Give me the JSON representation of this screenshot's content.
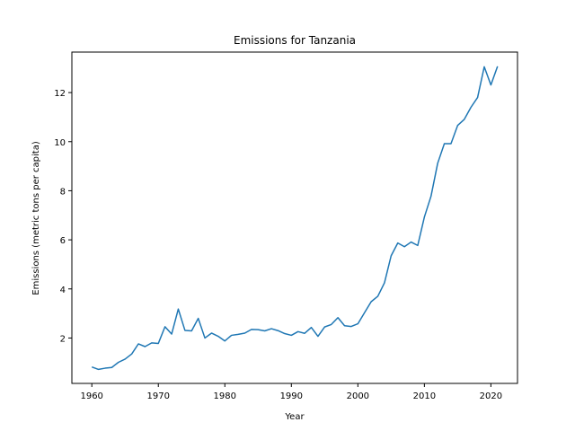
{
  "chart_data": {
    "type": "line",
    "title": "Emissions for Tanzania",
    "xlabel": "Year",
    "ylabel": "Emissions (metric tons per capita)",
    "xlim": [
      1957,
      2024
    ],
    "ylim": [
      0.15,
      13.65
    ],
    "xticks": [
      1960,
      1970,
      1980,
      1990,
      2000,
      2010,
      2020
    ],
    "yticks": [
      2,
      4,
      6,
      8,
      10,
      12
    ],
    "grid": false,
    "series": [
      {
        "color": "#1f77b4",
        "x": [
          1960,
          1961,
          1962,
          1963,
          1964,
          1965,
          1966,
          1967,
          1968,
          1969,
          1970,
          1971,
          1972,
          1973,
          1974,
          1975,
          1976,
          1977,
          1978,
          1979,
          1980,
          1981,
          1982,
          1983,
          1984,
          1985,
          1986,
          1987,
          1988,
          1989,
          1990,
          1991,
          1992,
          1993,
          1994,
          1995,
          1996,
          1997,
          1998,
          1999,
          2000,
          2001,
          2002,
          2003,
          2004,
          2005,
          2006,
          2007,
          2008,
          2009,
          2010,
          2011,
          2012,
          2013,
          2014,
          2015,
          2016,
          2017,
          2018,
          2019,
          2020,
          2021
        ],
        "y": [
          0.82,
          0.72,
          0.77,
          0.8,
          1.01,
          1.14,
          1.35,
          1.76,
          1.65,
          1.8,
          1.78,
          2.46,
          2.16,
          3.18,
          2.31,
          2.29,
          2.8,
          2.0,
          2.2,
          2.07,
          1.88,
          2.11,
          2.15,
          2.2,
          2.35,
          2.34,
          2.29,
          2.38,
          2.3,
          2.18,
          2.11,
          2.26,
          2.19,
          2.43,
          2.07,
          2.45,
          2.55,
          2.83,
          2.5,
          2.47,
          2.58,
          3.03,
          3.48,
          3.7,
          4.25,
          5.35,
          5.87,
          5.72,
          5.91,
          5.77,
          6.93,
          7.78,
          9.12,
          9.92,
          9.92,
          10.66,
          10.91,
          11.4,
          11.8,
          13.05,
          12.31,
          13.07
        ]
      }
    ]
  }
}
